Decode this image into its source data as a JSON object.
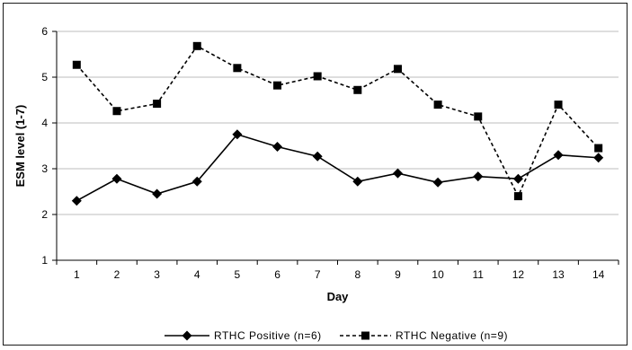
{
  "chart_data": {
    "type": "line",
    "xlabel": "Day",
    "ylabel": "ESM level (1-7)",
    "x": [
      1,
      2,
      3,
      4,
      5,
      6,
      7,
      8,
      9,
      10,
      11,
      12,
      13,
      14
    ],
    "xticks": [
      "1",
      "2",
      "3",
      "4",
      "5",
      "6",
      "7",
      "8",
      "9",
      "10",
      "11",
      "12",
      "13",
      "14"
    ],
    "ylim": [
      1,
      6
    ],
    "yticks": [
      "1",
      "2",
      "3",
      "4",
      "5",
      "6"
    ],
    "grid": true,
    "legend_position": "bottom",
    "series": [
      {
        "name": "RTHC Positive (n=6)",
        "marker": "diamond",
        "line_style": "solid",
        "color": "#000000",
        "values": [
          2.3,
          2.78,
          2.45,
          2.72,
          3.75,
          3.48,
          3.27,
          2.72,
          2.9,
          2.7,
          2.83,
          2.78,
          3.3,
          3.24
        ]
      },
      {
        "name": "RTHC Negative (n=9)",
        "marker": "square",
        "line_style": "dashed",
        "color": "#000000",
        "values": [
          5.27,
          4.26,
          4.42,
          5.68,
          5.2,
          4.82,
          5.02,
          4.72,
          5.18,
          4.4,
          4.14,
          2.4,
          4.4,
          3.45
        ]
      }
    ]
  }
}
